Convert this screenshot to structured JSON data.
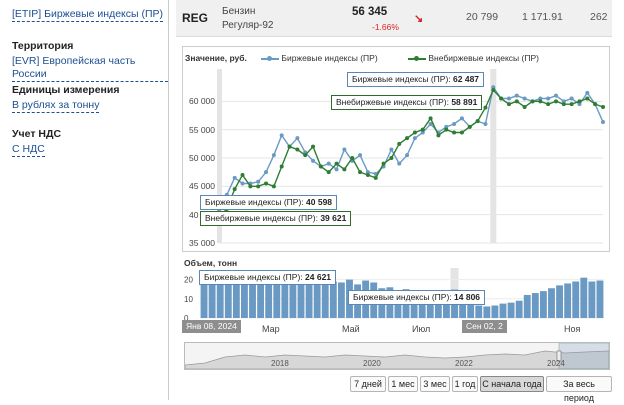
{
  "sidebar": {
    "top_link": "[ETIP] Биржевые индексы (ПР)",
    "territory_title": "Территория",
    "territory_link": "[EVR] Европейская часть России",
    "units_title": "Единицы измерения",
    "units_link": "В рублях за тонну",
    "vat_title": "Учет НДС",
    "vat_link": "С НДС"
  },
  "row": {
    "symbol": "REG",
    "name_line1": "Бензин",
    "name_line2": "Регуляр-92",
    "price": "56 345",
    "change": "-1.66%",
    "val1": "20 799",
    "val2": "1 171.91",
    "val3": "262"
  },
  "chart_labels": {
    "ylabel": "Значение, руб.",
    "vol_label": "Объем, тонн"
  },
  "tooltips": {
    "t1_label": "Биржевые индексы (ПР):",
    "t1_value": "62 487",
    "t2_label": "Внебиржевые индексы (ПР):",
    "t2_value": "58 891",
    "t3_label": "Биржевые индексы (ПР):",
    "t3_value": "40 598",
    "t4_label": "Внебиржевые индексы (ПР):",
    "t4_value": "39 621",
    "t5_label": "Биржевые индексы (ПР):",
    "t5_value": "24 621",
    "t6_label": "Биржевые индексы (ПР):",
    "t6_value": "14 806"
  },
  "date_labels": {
    "start": "Янв 08, 2024",
    "cursor": "Сен 02, 2"
  },
  "month_ticks": [
    "Мар",
    "Май",
    "Июл",
    "Ноя"
  ],
  "navigator_years": [
    "2018",
    "2020",
    "2022",
    "2024"
  ],
  "buttons": [
    "7 дней",
    "1 мес",
    "3 мес",
    "1 год",
    "С начала года",
    "За весь период"
  ],
  "colors": {
    "exchange": "#6a9ac4",
    "otc": "#2e7d32",
    "volume": "#6a9ac4"
  },
  "chart_data": [
    {
      "type": "line",
      "ylabel": "Значение, руб.",
      "ylim": [
        35000,
        65000
      ],
      "yticks": [
        35000,
        40000,
        45000,
        50000,
        55000,
        60000
      ],
      "xticks": [
        "Мар",
        "Май",
        "Июл",
        "Ноя"
      ],
      "legend": "top",
      "series": [
        {
          "name": "Биржевые индексы (ПР)",
          "values": [
            40598,
            43500,
            46500,
            45500,
            45500,
            45800,
            47500,
            50500,
            54000,
            52000,
            53500,
            51000,
            49500,
            48500,
            49000,
            48000,
            51500,
            49500,
            50500,
            47500,
            47200,
            48500,
            51500,
            49000,
            50500,
            53500,
            54500,
            56000,
            54500,
            55500,
            56000,
            57000,
            55500,
            56500,
            56000,
            62487,
            60500,
            60500,
            61000,
            60500,
            60000,
            60500,
            60500,
            61000,
            60000,
            60500,
            59500,
            61500,
            59500,
            56345
          ]
        },
        {
          "name": "Внебиржевые индексы (ПР)",
          "values": [
            39621,
            41000,
            44500,
            47000,
            45000,
            45000,
            45500,
            45000,
            48500,
            52000,
            51500,
            50500,
            52000,
            48500,
            47500,
            49000,
            48000,
            50000,
            47500,
            47000,
            46500,
            49000,
            50000,
            52500,
            53500,
            54500,
            55000,
            57000,
            54000,
            55000,
            54500,
            54500,
            55500,
            56500,
            58891,
            62000,
            60500,
            59500,
            60000,
            59000,
            60000,
            60000,
            59500,
            60000,
            59500,
            59500,
            60000,
            60500,
            59500,
            59000
          ]
        }
      ]
    },
    {
      "type": "bar",
      "ylabel": "Объем, тонн",
      "ylim": [
        0,
        25000
      ],
      "yticks": [
        0,
        10000,
        20000
      ],
      "series": [
        {
          "name": "Биржевые индексы (ПР)",
          "values": [
            24621,
            22000,
            20000,
            19500,
            21000,
            21500,
            20500,
            20500,
            19000,
            18500,
            19500,
            19000,
            19500,
            19000,
            19500,
            19500,
            19000,
            18500,
            20000,
            17500,
            19500,
            18500,
            15500,
            16000,
            14500,
            15000,
            14000,
            13500,
            14500,
            13500,
            14000,
            14806,
            10000,
            7500,
            6500,
            6000,
            6500,
            7500,
            8000,
            9000,
            12000,
            13000,
            14000,
            15500,
            17000,
            18000,
            19000,
            21000,
            19000,
            19500
          ]
        }
      ]
    }
  ]
}
